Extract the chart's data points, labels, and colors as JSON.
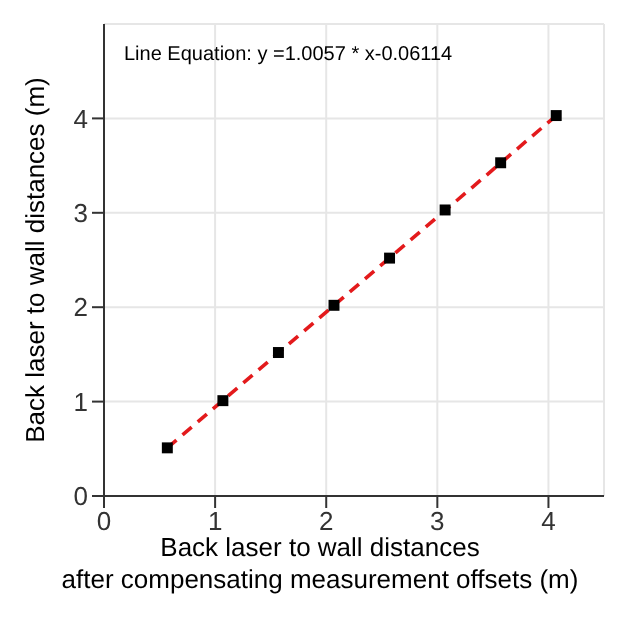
{
  "chart_data": {
    "type": "scatter",
    "xlabel": "Back laser to wall distances\nafter compensating measurement offsets (m)",
    "ylabel": "Back laser to wall distances (m)",
    "annotations": [
      "Line Equation: y =1.0057 * x-0.06114"
    ],
    "x": [
      0.57,
      1.07,
      1.57,
      2.07,
      2.57,
      3.07,
      3.57,
      4.07
    ],
    "series": [
      {
        "color": "#000000",
        "marker": "square",
        "values": [
          0.51,
          1.01,
          1.52,
          2.02,
          2.52,
          3.03,
          3.53,
          4.03
        ]
      },
      {
        "type": "line",
        "color": "#e31a1c",
        "line_style": "dashed",
        "marker": "none",
        "x": [
          0.57,
          4.07
        ],
        "values": [
          0.51,
          4.03
        ]
      }
    ],
    "xlim": [
      0,
      4.5
    ],
    "ylim": [
      0,
      5
    ],
    "xticks": [
      0,
      1,
      2,
      3,
      4
    ],
    "yticks": [
      0,
      1,
      2,
      3,
      4
    ],
    "grid": true
  }
}
